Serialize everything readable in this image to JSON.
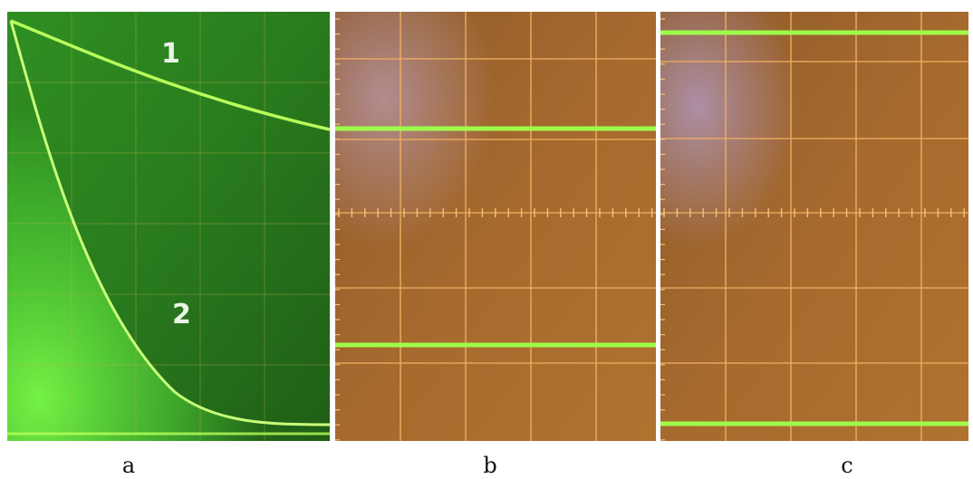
{
  "panels": [
    {
      "id": "a",
      "caption": "a",
      "traces": [
        {
          "label": "1",
          "color": "#b8ff5a"
        },
        {
          "label": "2",
          "color": "#c9ff7a"
        }
      ]
    },
    {
      "id": "b",
      "caption": "b",
      "trace_count": 2,
      "trace_color": "#9dff4a"
    },
    {
      "id": "c",
      "caption": "c",
      "trace_count": 2,
      "trace_color": "#9dff4a"
    }
  ],
  "colors": {
    "phosphor_green": "#3bbd2a",
    "screen_amber": "#a5692b",
    "graticule_orange": "#f0b060"
  }
}
